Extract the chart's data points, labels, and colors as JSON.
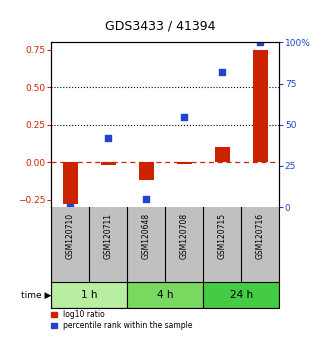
{
  "title": "GDS3433 / 41394",
  "samples": [
    "GSM120710",
    "GSM120711",
    "GSM120648",
    "GSM120708",
    "GSM120715",
    "GSM120716"
  ],
  "log10_ratio": [
    -0.28,
    -0.02,
    -0.12,
    -0.01,
    0.1,
    0.75
  ],
  "percentile_rank": [
    0.0,
    42.0,
    5.0,
    55.0,
    82.0,
    100.0
  ],
  "groups": [
    {
      "label": "1 h",
      "samples": [
        0,
        1
      ],
      "color": "#b8eea0"
    },
    {
      "label": "4 h",
      "samples": [
        2,
        3
      ],
      "color": "#78d860"
    },
    {
      "label": "24 h",
      "samples": [
        4,
        5
      ],
      "color": "#44cc44"
    }
  ],
  "ylim_left": [
    -0.3,
    0.8
  ],
  "ylim_right": [
    0,
    100
  ],
  "yticks_left": [
    -0.25,
    0,
    0.25,
    0.5,
    0.75
  ],
  "yticks_right": [
    0,
    25,
    50,
    75,
    100
  ],
  "hlines": [
    0.25,
    0.5
  ],
  "bar_color": "#cc2200",
  "dot_color": "#2244cc",
  "bar_width": 0.4,
  "dot_size": 25,
  "left_tick_color": "#cc2200",
  "right_tick_color": "#2244cc",
  "background_color": "#ffffff",
  "label_bg": "#c0c0c0"
}
